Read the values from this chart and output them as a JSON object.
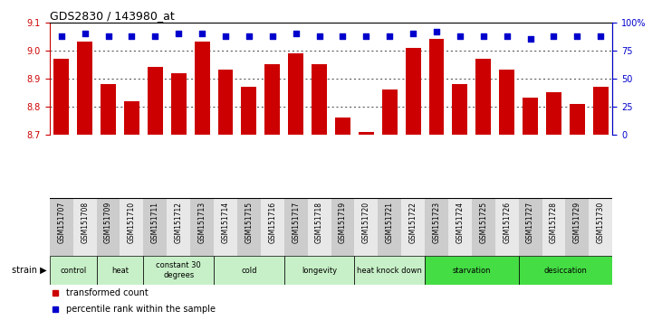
{
  "title": "GDS2830 / 143980_at",
  "samples": [
    "GSM151707",
    "GSM151708",
    "GSM151709",
    "GSM151710",
    "GSM151711",
    "GSM151712",
    "GSM151713",
    "GSM151714",
    "GSM151715",
    "GSM151716",
    "GSM151717",
    "GSM151718",
    "GSM151719",
    "GSM151720",
    "GSM151721",
    "GSM151722",
    "GSM151723",
    "GSM151724",
    "GSM151725",
    "GSM151726",
    "GSM151727",
    "GSM151728",
    "GSM151729",
    "GSM151730"
  ],
  "bar_values": [
    8.97,
    9.03,
    8.88,
    8.82,
    8.94,
    8.92,
    9.03,
    8.93,
    8.87,
    8.95,
    8.99,
    8.95,
    8.76,
    8.71,
    8.86,
    9.01,
    9.04,
    8.88,
    8.97,
    8.93,
    8.83,
    8.85,
    8.81,
    8.87
  ],
  "percentile_values": [
    88,
    90,
    88,
    88,
    88,
    90,
    90,
    88,
    88,
    88,
    90,
    88,
    88,
    88,
    88,
    90,
    92,
    88,
    88,
    88,
    85,
    88,
    88,
    88
  ],
  "bar_color": "#cc0000",
  "dot_color": "#0000cc",
  "ylim_left": [
    8.7,
    9.1
  ],
  "ylim_right": [
    0,
    100
  ],
  "yticks_left": [
    8.7,
    8.8,
    8.9,
    9.0,
    9.1
  ],
  "yticks_right": [
    0,
    25,
    50,
    75,
    100
  ],
  "ytick_labels_right": [
    "0",
    "25",
    "50",
    "75",
    "100%"
  ],
  "groups": [
    {
      "label": "control",
      "start": 0,
      "end": 2,
      "color": "#c8f0c8"
    },
    {
      "label": "heat",
      "start": 2,
      "end": 4,
      "color": "#c8f0c8"
    },
    {
      "label": "constant 30\ndegrees",
      "start": 4,
      "end": 7,
      "color": "#c8f0c8"
    },
    {
      "label": "cold",
      "start": 7,
      "end": 10,
      "color": "#c8f0c8"
    },
    {
      "label": "longevity",
      "start": 10,
      "end": 13,
      "color": "#c8f0c8"
    },
    {
      "label": "heat knock down",
      "start": 13,
      "end": 16,
      "color": "#c8f0c8"
    },
    {
      "label": "starvation",
      "start": 16,
      "end": 20,
      "color": "#44dd44"
    },
    {
      "label": "desiccation",
      "start": 20,
      "end": 24,
      "color": "#44dd44"
    }
  ],
  "legend_items": [
    {
      "label": "transformed count",
      "color": "#cc0000"
    },
    {
      "label": "percentile rank within the sample",
      "color": "#0000cc"
    }
  ],
  "tick_color_left": "#cc0000",
  "tick_color_right": "#0000cc",
  "bar_bottom": 8.7
}
